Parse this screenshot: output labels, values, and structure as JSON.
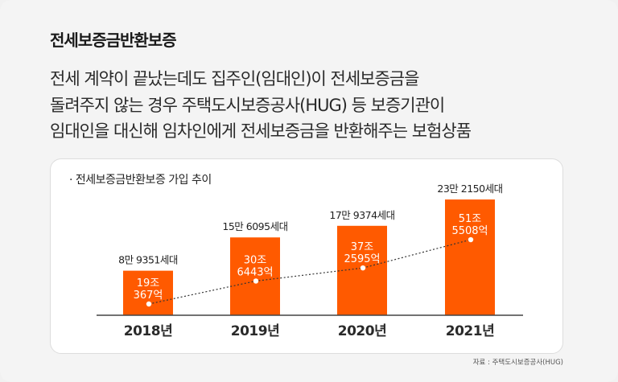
{
  "title": "전세보증금반환보증",
  "description": [
    "전세 계약이 끝났는데도 집주인(임대인)이 전세보증금을",
    "돌려주지 않는 경우 주택도시보증공사(HUG) 등 보증기관이",
    "임대인을 대신해 임차인에게 전세보증금을 반환해주는 보험상품"
  ],
  "source": "자료 : 주택도시보증공사(HUG)",
  "colors": {
    "bar": "#ff5a00",
    "text": "#222222"
  },
  "chart_data": {
    "type": "bar",
    "title": "· 전세보증금반환보증 가입 추이",
    "categories": [
      "2018년",
      "2019년",
      "2020년",
      "2021년"
    ],
    "series": [
      {
        "type": "bar",
        "values": [
          89351,
          156095,
          179374,
          232150
        ],
        "labels": [
          "8만 9351세대",
          "15만 6095세대",
          "17만 9374세대",
          "23만 2150세대"
        ]
      },
      {
        "type": "line",
        "style": "dotted",
        "values": [
          19.0367,
          30.6443,
          37.2595,
          51.5508
        ],
        "labels_line1": [
          "19조",
          "30조",
          "37조",
          "51조"
        ],
        "labels_line2": [
          "367억",
          "6443억",
          "2595억",
          "5508억"
        ]
      }
    ]
  }
}
